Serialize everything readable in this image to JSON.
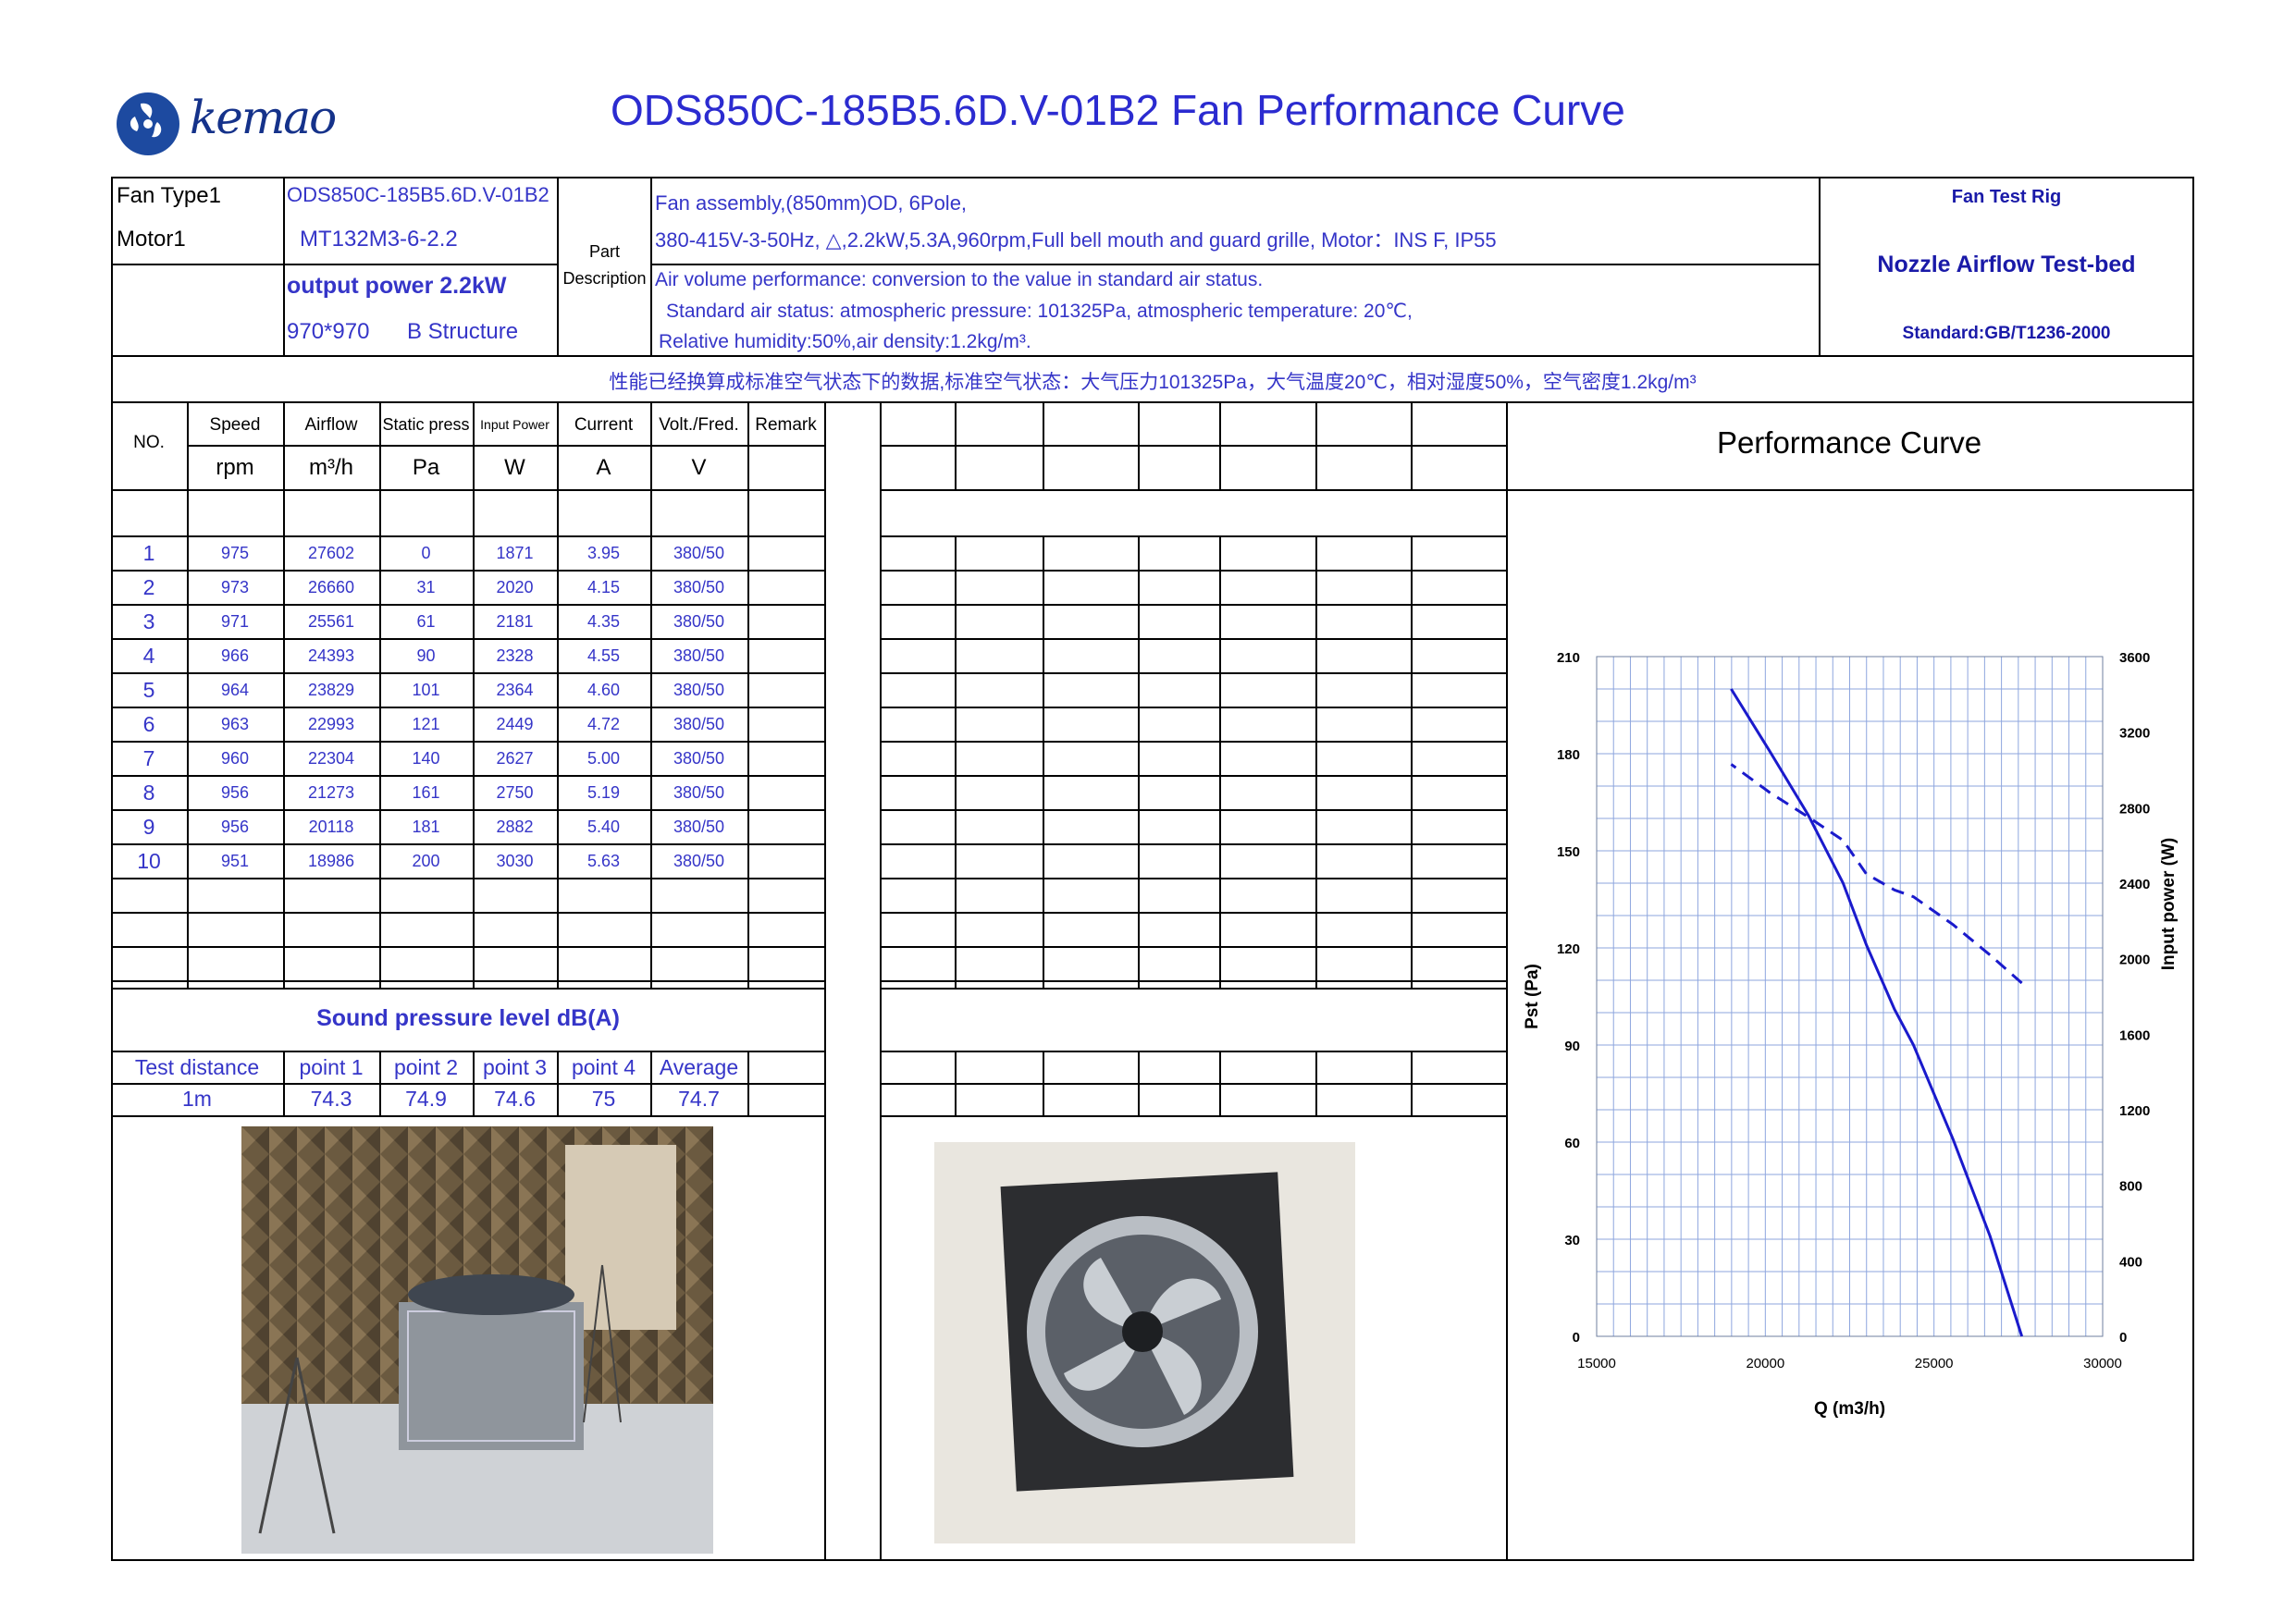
{
  "title": "ODS850C-185B5.6D.V-01B2  Fan  Performance Curve",
  "logo": {
    "text": "kemao"
  },
  "header": {
    "fan_type_label": "Fan Type1",
    "fan_type_value": "ODS850C-185B5.6D.V-01B2",
    "motor_label": "Motor1",
    "motor_value": "MT132M3-6-2.2",
    "output_power": "output power 2.2kW",
    "structure_size": "970*970",
    "structure_type": "B Structure",
    "part_label_1": "Part",
    "part_label_2": "Description",
    "desc_line1": "Fan assembly,(850mm)OD, 6Pole,",
    "desc_line2": "380-415V-3-50Hz, △,2.2kW,5.3A,960rpm,Full bell mouth and guard grille, Motor：INS F, IP55",
    "desc_line3": "Air volume performance: conversion to the value in standard air status.",
    "desc_line4": "Standard air status: atmospheric pressure: 101325Pa, atmospheric temperature: 20℃,",
    "desc_line5": "Relative humidity:50%,air density:1.2kg/m³.",
    "rig_label": "Fan Test Rig",
    "rig_value": "Nozzle Airflow Test-bed",
    "standard": "Standard:GB/T1236-2000"
  },
  "chinese_note": "性能已经换算成标准空气状态下的数据,标准空气状态：大气压力101325Pa，大气温度20℃，相对湿度50%，空气密度1.2kg/m³",
  "table": {
    "no_label": "NO.",
    "headers": [
      "Speed",
      "Airflow",
      "Static press",
      "Input Power",
      "Current",
      "Volt./Fred.",
      "Remark"
    ],
    "units": [
      "rpm",
      "m³/h",
      "Pa",
      "W",
      "A",
      "V",
      ""
    ],
    "rows": [
      [
        "1",
        "975",
        "27602",
        "0",
        "1871",
        "3.95",
        "380/50"
      ],
      [
        "2",
        "973",
        "26660",
        "31",
        "2020",
        "4.15",
        "380/50"
      ],
      [
        "3",
        "971",
        "25561",
        "61",
        "2181",
        "4.35",
        "380/50"
      ],
      [
        "4",
        "966",
        "24393",
        "90",
        "2328",
        "4.55",
        "380/50"
      ],
      [
        "5",
        "964",
        "23829",
        "101",
        "2364",
        "4.60",
        "380/50"
      ],
      [
        "6",
        "963",
        "22993",
        "121",
        "2449",
        "4.72",
        "380/50"
      ],
      [
        "7",
        "960",
        "22304",
        "140",
        "2627",
        "5.00",
        "380/50"
      ],
      [
        "8",
        "956",
        "21273",
        "161",
        "2750",
        "5.19",
        "380/50"
      ],
      [
        "9",
        "956",
        "20118",
        "181",
        "2882",
        "5.40",
        "380/50"
      ],
      [
        "10",
        "951",
        "18986",
        "200",
        "3030",
        "5.63",
        "380/50"
      ]
    ]
  },
  "sound": {
    "title": "Sound pressure level dB(A)",
    "headers": [
      "Test distance",
      "point 1",
      "point 2",
      "point 3",
      "point 4",
      "Average"
    ],
    "values": [
      "1m",
      "74.3",
      "74.9",
      "74.6",
      "75",
      "74.7"
    ]
  },
  "chart_title": "Performance Curve",
  "chart_data": {
    "type": "line",
    "xlabel": "Q (m3/h)",
    "ylabel": "Pst (Pa)",
    "y2label": "Input power  (W)",
    "xlim": [
      15000,
      30000
    ],
    "ylim": [
      0,
      210
    ],
    "y2lim": [
      0,
      3600
    ],
    "xticks": [
      15000,
      20000,
      25000,
      30000
    ],
    "yticks": [
      0,
      30,
      60,
      90,
      120,
      150,
      180,
      210
    ],
    "y2ticks": [
      0,
      400,
      800,
      1200,
      1600,
      2000,
      2400,
      2800,
      3200,
      3600
    ],
    "grid": true,
    "series": [
      {
        "axis": "left",
        "style": "solid",
        "color": "#1a1acc",
        "x": [
          27602,
          26660,
          25561,
          24393,
          23829,
          22993,
          22304,
          21273,
          20118,
          18986
        ],
        "y": [
          0,
          31,
          61,
          90,
          101,
          121,
          140,
          161,
          181,
          200
        ]
      },
      {
        "axis": "right",
        "style": "dashed",
        "color": "#1a1acc",
        "x": [
          27602,
          26660,
          25561,
          24393,
          23829,
          22993,
          22304,
          21273,
          20118,
          18986
        ],
        "y": [
          1871,
          2020,
          2181,
          2328,
          2364,
          2449,
          2627,
          2750,
          2882,
          3030
        ]
      }
    ]
  },
  "colors": {
    "text_blue": "#3535c8",
    "curve": "#1a1acc",
    "grid": "#8ea6de"
  }
}
